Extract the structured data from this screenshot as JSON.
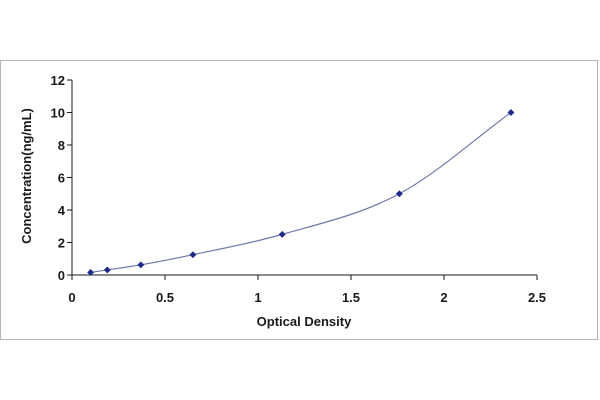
{
  "chart_data": {
    "type": "scatter",
    "xlabel": "Optical Density",
    "ylabel": "Concentration(ng/mL)",
    "xlim": [
      0,
      2.5
    ],
    "ylim": [
      0,
      12
    ],
    "x_ticks": [
      "0",
      "0.5",
      "1",
      "1.5",
      "2",
      "2.5"
    ],
    "y_ticks": [
      "0",
      "2",
      "4",
      "6",
      "8",
      "10",
      "12"
    ],
    "grid": false,
    "legend": "none",
    "series": [
      {
        "points": [
          {
            "x": 0.1,
            "y": 0.156
          },
          {
            "x": 0.19,
            "y": 0.312
          },
          {
            "x": 0.37,
            "y": 0.625
          },
          {
            "x": 0.65,
            "y": 1.25
          },
          {
            "x": 1.13,
            "y": 2.5
          },
          {
            "x": 1.76,
            "y": 5
          },
          {
            "x": 2.36,
            "y": 10
          }
        ],
        "marker": "diamond",
        "marker_color": "#1f2a8a",
        "fit_curve": true,
        "curve_color": "#6f78a8"
      }
    ]
  }
}
